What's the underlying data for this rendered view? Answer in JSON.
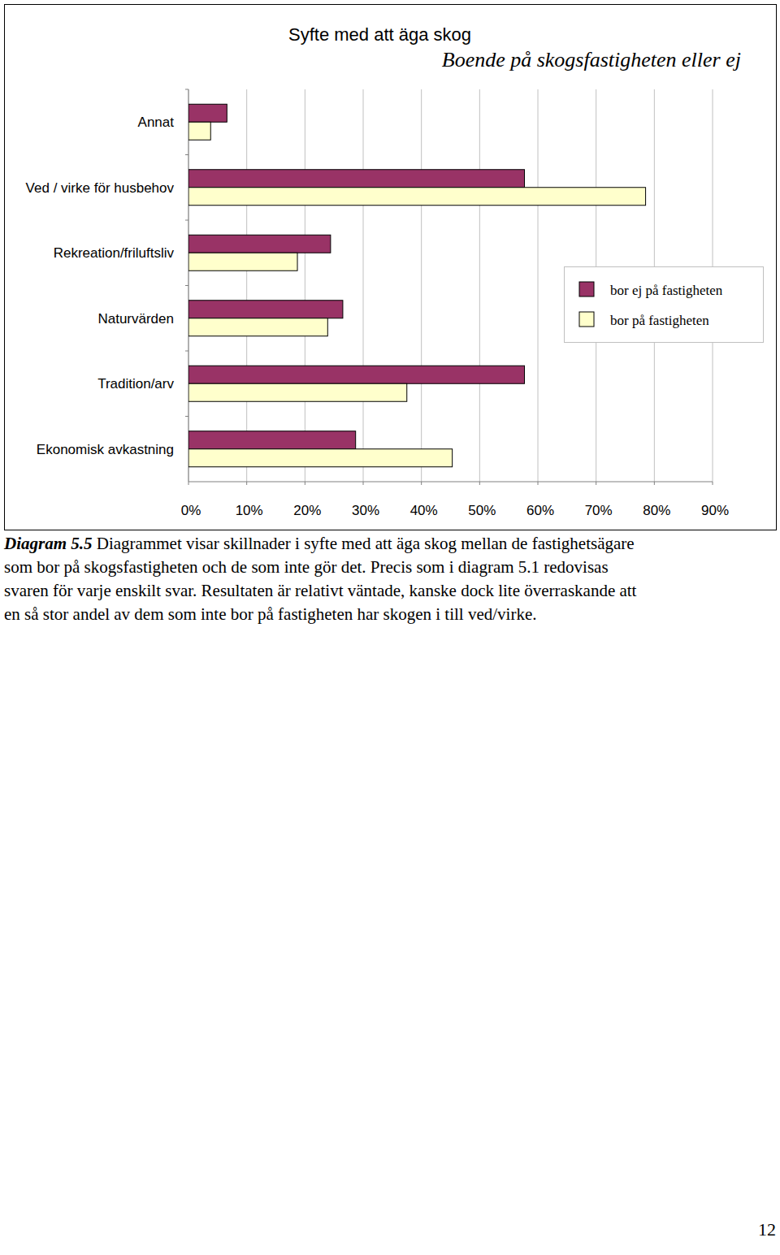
{
  "chart_data": {
    "type": "bar",
    "title": "Syfte med att äga skog",
    "subtitle": "Boende på skogsfastigheten eller ej",
    "orientation": "horizontal",
    "categories": [
      "Annat",
      "Ved / virke för husbehov",
      "Rekreation/friluftsliv",
      "Naturvärden",
      "Tradition/arv",
      "Ekonomisk avkastning"
    ],
    "series": [
      {
        "name": "bor ej på fastigheten",
        "color": "#993366",
        "values": [
          6.6,
          57.7,
          24.4,
          26.5,
          57.7,
          28.7
        ]
      },
      {
        "name": "bor på fastigheten",
        "color": "#ffffcc",
        "values": [
          3.8,
          78.5,
          18.7,
          23.9,
          37.5,
          45.3
        ]
      }
    ],
    "xlim": [
      0,
      90
    ],
    "xticks": [
      {
        "value": 0,
        "label": "0%"
      },
      {
        "value": 10,
        "label": "10%"
      },
      {
        "value": 20,
        "label": "20%"
      },
      {
        "value": 30,
        "label": "30%"
      },
      {
        "value": 40,
        "label": "40%"
      },
      {
        "value": 50,
        "label": "50%"
      },
      {
        "value": 60,
        "label": "60%"
      },
      {
        "value": 70,
        "label": "70%"
      },
      {
        "value": 80,
        "label": "80%"
      },
      {
        "value": 90,
        "label": "90%"
      }
    ],
    "grid": true,
    "legend": "right"
  },
  "caption": {
    "label": "Diagram 5.5",
    "lines": [
      " Diagrammet visar skillnader i syfte med att äga skog mellan de fastighetsägare",
      "som bor på skogsfastigheten och de som inte gör det. Precis som i diagram 5.1 redovisas",
      "svaren för varje enskilt svar. Resultaten är relativt väntade, kanske dock lite överraskande att",
      "en så stor andel av dem som inte bor på fastigheten har skogen i till ved/virke."
    ]
  },
  "page_number": "12"
}
